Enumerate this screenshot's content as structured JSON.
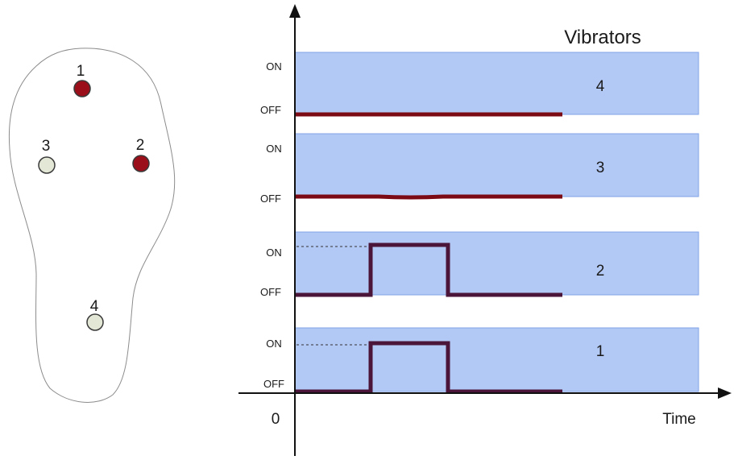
{
  "title": "Vibrators",
  "axis": {
    "origin_label": "0",
    "x_label": "Time"
  },
  "state_labels": {
    "on": "ON",
    "off": "OFF"
  },
  "colors": {
    "band_fill": "#b3c9f5",
    "band_stroke": "#6f95e0",
    "active_sensor": "#9b0f1a",
    "inactive_sensor": "#e3e7d5",
    "signal_off": "#7b0a14",
    "signal_pulse": "#4a1538"
  },
  "sensors": [
    {
      "label": "1",
      "state": "active"
    },
    {
      "label": "2",
      "state": "active"
    },
    {
      "label": "3",
      "state": "inactive"
    },
    {
      "label": "4",
      "state": "inactive"
    }
  ],
  "channels": [
    {
      "label": "4",
      "signal": "constant-off"
    },
    {
      "label": "3",
      "signal": "constant-off"
    },
    {
      "label": "2",
      "signal": "single-pulse"
    },
    {
      "label": "1",
      "signal": "single-pulse"
    }
  ]
}
